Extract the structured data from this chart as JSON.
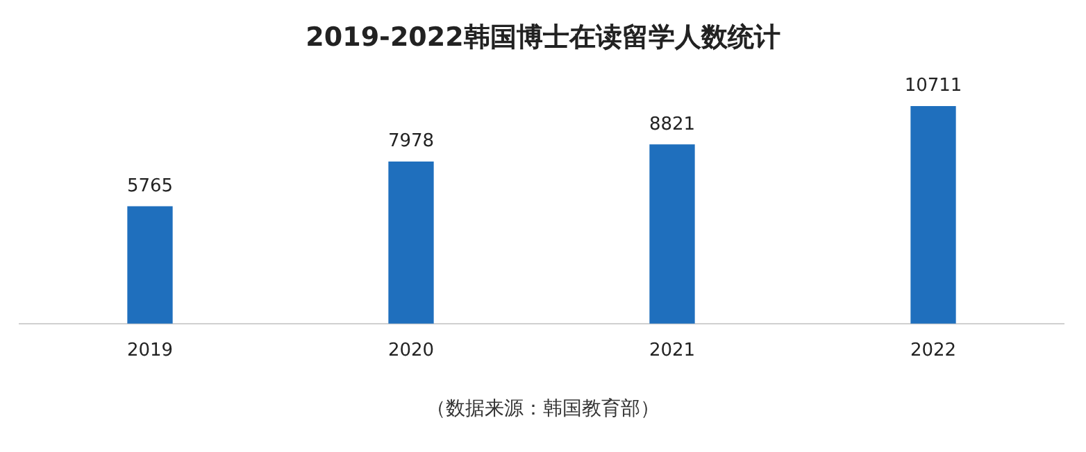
{
  "chart_data": {
    "type": "bar",
    "title": "2019-2022韩国博士在读留学人数统计",
    "categories": [
      "2019",
      "2020",
      "2021",
      "2022"
    ],
    "values": [
      5765,
      7978,
      8821,
      10711
    ],
    "color": "#1f6fbd",
    "data_labels": true,
    "annotations": [
      "（数据来源：韩国教育部）"
    ]
  }
}
